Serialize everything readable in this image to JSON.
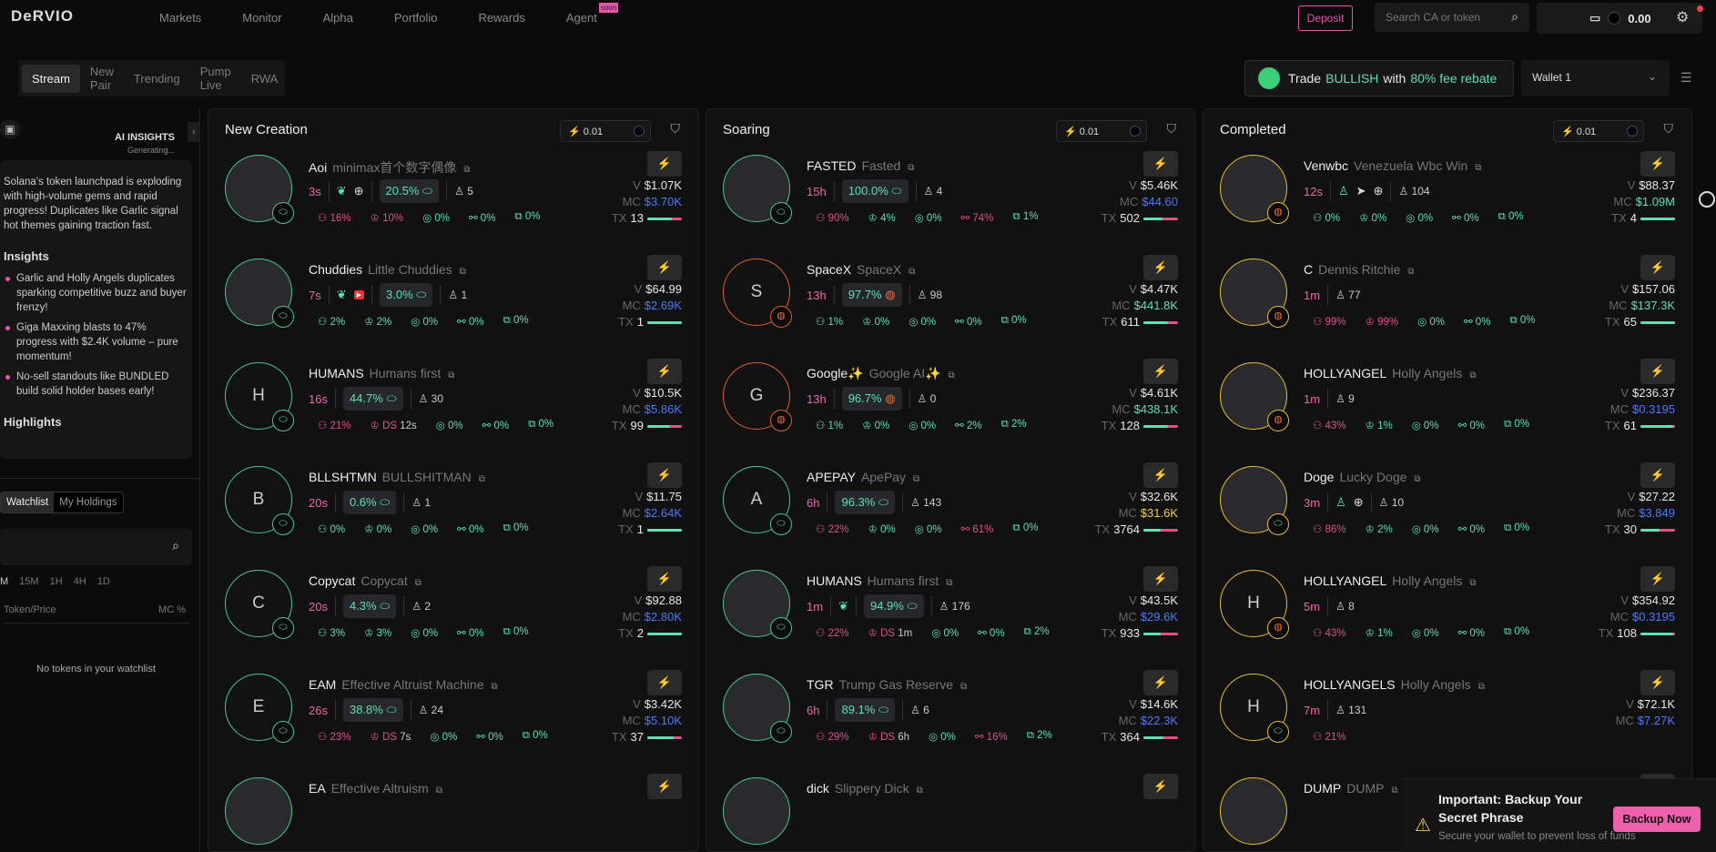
{
  "header": {
    "logo": "DeRVIO",
    "nav": [
      "Markets",
      "Monitor",
      "Alpha",
      "Portfolio",
      "Rewards",
      "Agent"
    ],
    "soon_badge": "soon",
    "deposit": "Deposit",
    "search_placeholder": "Search CA or token",
    "balance": "0.00"
  },
  "tabs": [
    "Stream",
    "New Pair",
    "Trending",
    "Pump Live",
    "RWA"
  ],
  "promo": {
    "t1": "Trade",
    "t2": "BULLISH",
    "t3": "with",
    "t4": "80% fee rebate"
  },
  "wallet_select": "Wallet 1",
  "sidebar": {
    "ai_title": "AI INSIGHTS",
    "ai_status": "Generating...",
    "summary": "Solana's token launchpad is exploding with high-volume gems and rapid progress! Duplicates like Garlic signal hot themes gaining traction fast.",
    "insights_title": "Insights",
    "insights": [
      "Garlic and Holly Angels duplicates sparking competitive buzz and buyer frenzy!",
      "Giga Maxxing blasts to 47% progress with $2.4K volume – pure momentum!",
      "No-sell standouts like BUNDLED build solid holder bases early!"
    ],
    "highlights_title": "Highlights",
    "watch_tabs": [
      "Watchlist",
      "My Holdings"
    ],
    "timeframes": [
      "M",
      "15M",
      "1H",
      "4H",
      "1D"
    ],
    "col_token": "Token/Price",
    "col_mc": "MC %",
    "empty": "No tokens in your watchlist"
  },
  "colors": {
    "green": "#5ee0b0",
    "pink": "#e0508a",
    "blue": "#4b7bf5",
    "yellow": "#f2d230",
    "ring_green": "#49c790",
    "ring_orange": "#e0602a",
    "ring_yellow": "#e6c12c"
  },
  "columns": [
    {
      "title": "New Creation",
      "amount": "0.01",
      "cards": [
        {
          "symbol": "Aoi",
          "name": "minimax首个数字偶像",
          "age": "3s",
          "socials": [
            "leaf",
            "globe"
          ],
          "progress": "20.5%",
          "badge": "pill",
          "holders": "5",
          "stats": [
            {
              "v": "16%",
              "bad": true
            },
            {
              "v": "10%",
              "bad": true
            },
            {
              "v": "0%"
            },
            {
              "v": "0%"
            },
            {
              "v": "0%"
            }
          ],
          "v": "$1.07K",
          "mc": "$3.70K",
          "mc_color": "blue",
          "tx": "13",
          "buy": 0.7,
          "img": true
        },
        {
          "symbol": "Chuddies",
          "name": "Little Chuddies",
          "age": "7s",
          "socials": [
            "leaf",
            "youtube"
          ],
          "progress": "3.0%",
          "badge": "pill",
          "holders": "1",
          "stats": [
            {
              "v": "2%"
            },
            {
              "v": "2%"
            },
            {
              "v": "0%"
            },
            {
              "v": "0%"
            },
            {
              "v": "0%"
            }
          ],
          "v": "$64.99",
          "mc": "$2.69K",
          "mc_color": "blue",
          "tx": "1",
          "buy": 1,
          "img": true
        },
        {
          "symbol": "HUMANS",
          "name": "Humans first",
          "letter": "H",
          "age": "16s",
          "socials": [],
          "progress": "44.7%",
          "badge": "pill",
          "holders": "30",
          "stats": [
            {
              "v": "21%",
              "bad": true
            },
            {
              "v": "12s",
              "ds": true,
              "bad": true
            },
            {
              "v": "0%"
            },
            {
              "v": "0%"
            },
            {
              "v": "0%"
            }
          ],
          "v": "$10.5K",
          "mc": "$5.86K",
          "mc_color": "blue",
          "tx": "99",
          "buy": 0.65
        },
        {
          "symbol": "BLLSHTMN",
          "name": "BULLSHITMAN",
          "letter": "B",
          "age": "20s",
          "socials": [],
          "progress": "0.6%",
          "badge": "pill",
          "holders": "1",
          "stats": [
            {
              "v": "0%"
            },
            {
              "v": "0%"
            },
            {
              "v": "0%"
            },
            {
              "v": "0%"
            },
            {
              "v": "0%"
            }
          ],
          "v": "$11.75",
          "mc": "$2.64K",
          "mc_color": "blue",
          "tx": "1",
          "buy": 1
        },
        {
          "symbol": "Copycat",
          "name": "Copycat",
          "letter": "C",
          "age": "20s",
          "socials": [],
          "progress": "4.3%",
          "badge": "pill",
          "holders": "2",
          "stats": [
            {
              "v": "3%"
            },
            {
              "v": "3%"
            },
            {
              "v": "0%"
            },
            {
              "v": "0%"
            },
            {
              "v": "0%"
            }
          ],
          "v": "$92.88",
          "mc": "$2.80K",
          "mc_color": "blue",
          "tx": "2",
          "buy": 1
        },
        {
          "symbol": "EAM",
          "name": "Effective Altruist Machine",
          "letter": "E",
          "age": "26s",
          "socials": [],
          "progress": "38.8%",
          "badge": "pill",
          "holders": "24",
          "stats": [
            {
              "v": "23%",
              "bad": true
            },
            {
              "v": "7s",
              "ds": true,
              "bad": true
            },
            {
              "v": "0%"
            },
            {
              "v": "0%"
            },
            {
              "v": "0%"
            }
          ],
          "v": "$3.42K",
          "mc": "$5.10K",
          "mc_color": "blue",
          "tx": "37",
          "buy": 0.75
        },
        {
          "symbol": "EA",
          "name": "Effective Altruism",
          "img": true
        }
      ]
    },
    {
      "title": "Soaring",
      "amount": "0.01",
      "cards": [
        {
          "symbol": "FASTED",
          "name": "Fasted",
          "age": "15h",
          "socials": [],
          "progress": "100.0%",
          "badge": "pill",
          "holders": "4",
          "stats": [
            {
              "v": "90%",
              "bad": true
            },
            {
              "v": "4%"
            },
            {
              "v": "0%"
            },
            {
              "v": "74%",
              "bad": true
            },
            {
              "v": "1%"
            }
          ],
          "v": "$5.46K",
          "mc": "$44.60",
          "mc_color": "blue",
          "tx": "502",
          "buy": 0.55,
          "img": true
        },
        {
          "symbol": "SpaceX",
          "name": "SpaceX",
          "letter": "S",
          "ring": "orange",
          "age": "13h",
          "socials": [],
          "progress": "97.7%",
          "badge": "pump",
          "holders": "98",
          "stats": [
            {
              "v": "1%"
            },
            {
              "v": "0%"
            },
            {
              "v": "0%"
            },
            {
              "v": "0%"
            },
            {
              "v": "0%"
            }
          ],
          "v": "$4.47K",
          "mc": "$441.8K",
          "mc_color": "green",
          "tx": "611",
          "buy": 0.72
        },
        {
          "symbol": "Google✨",
          "name": "Google AI✨",
          "letter": "G",
          "ring": "orange",
          "age": "13h",
          "socials": [],
          "progress": "96.7%",
          "badge": "pump",
          "holders": "0",
          "stats": [
            {
              "v": "1%"
            },
            {
              "v": "0%"
            },
            {
              "v": "0%"
            },
            {
              "v": "2%"
            },
            {
              "v": "2%"
            }
          ],
          "v": "$4.61K",
          "mc": "$438.1K",
          "mc_color": "green",
          "tx": "128",
          "buy": 0.72
        },
        {
          "symbol": "APEPAY",
          "name": "ApePay",
          "letter": "A",
          "age": "6h",
          "socials": [],
          "progress": "96.3%",
          "badge": "pill",
          "holders": "143",
          "stats": [
            {
              "v": "22%",
              "bad": true
            },
            {
              "v": "0%"
            },
            {
              "v": "0%"
            },
            {
              "v": "61%",
              "bad": true
            },
            {
              "v": "0%"
            }
          ],
          "v": "$32.6K",
          "mc": "$31.6K",
          "mc_color": "yellow",
          "tx": "3764",
          "buy": 0.5
        },
        {
          "symbol": "HUMANS",
          "name": "Humans first",
          "age": "1m",
          "socials": [
            "leaf"
          ],
          "progress": "94.9%",
          "badge": "pill",
          "holders": "176",
          "stats": [
            {
              "v": "22%",
              "bad": true
            },
            {
              "v": "1m",
              "ds": true,
              "bad": true
            },
            {
              "v": "0%"
            },
            {
              "v": "0%"
            },
            {
              "v": "2%"
            }
          ],
          "v": "$43.5K",
          "mc": "$29.6K",
          "mc_color": "blue",
          "tx": "933",
          "buy": 0.5,
          "img": true
        },
        {
          "symbol": "TGR",
          "name": "Trump Gas Reserve",
          "age": "6h",
          "socials": [],
          "progress": "89.1%",
          "badge": "pill",
          "holders": "6",
          "stats": [
            {
              "v": "29%",
              "bad": true
            },
            {
              "v": "6h",
              "ds": true,
              "bad": true
            },
            {
              "v": "0%"
            },
            {
              "v": "16%",
              "bad": true
            },
            {
              "v": "2%"
            }
          ],
          "v": "$14.6K",
          "mc": "$22.3K",
          "mc_color": "blue",
          "tx": "364",
          "buy": 0.58,
          "img": true
        },
        {
          "symbol": "dick",
          "name": "Slippery Dick",
          "img": true
        }
      ]
    },
    {
      "title": "Completed",
      "amount": "0.01",
      "cards": [
        {
          "symbol": "Venwbc",
          "name": "Venezuela Wbc Win",
          "ring": "yellow",
          "age": "12s",
          "socials": [
            "user",
            "telegram",
            "globe"
          ],
          "badge": "pump",
          "holders": "104",
          "stats": [
            {
              "v": "0%"
            },
            {
              "v": "0%"
            },
            {
              "v": "0%"
            },
            {
              "v": "0%"
            },
            {
              "v": "0%"
            }
          ],
          "v": "$88.37",
          "mc": "$1.09M",
          "mc_color": "green",
          "tx": "4",
          "buy": 1,
          "img": true
        },
        {
          "symbol": "C",
          "name": "Dennis Ritchie",
          "ring": "yellow",
          "age": "1m",
          "socials": [],
          "badge": "pump",
          "holders": "77",
          "stats": [
            {
              "v": "99%",
              "bad": true
            },
            {
              "v": "99%",
              "bad": true
            },
            {
              "v": "0%"
            },
            {
              "v": "0%"
            },
            {
              "v": "0%"
            }
          ],
          "v": "$157.06",
          "mc": "$137.3K",
          "mc_color": "green",
          "tx": "65",
          "buy": 1,
          "img": true
        },
        {
          "symbol": "HOLLYANGEL",
          "name": "Holly Angels",
          "ring": "yellow",
          "age": "1m",
          "socials": [],
          "badge": "pump",
          "holders": "9",
          "stats": [
            {
              "v": "43%",
              "bad": true
            },
            {
              "v": "1%"
            },
            {
              "v": "0%"
            },
            {
              "v": "0%"
            },
            {
              "v": "0%"
            }
          ],
          "v": "$236.37",
          "mc": "$0.3195",
          "mc_color": "blue",
          "tx": "61",
          "buy": 0.96,
          "img": true
        },
        {
          "symbol": "Doge",
          "name": "Lucky Doge",
          "ring": "yellow",
          "age": "3m",
          "socials": [
            "user",
            "globe"
          ],
          "badge": "pill",
          "holders": "10",
          "stats": [
            {
              "v": "86%",
              "bad": true
            },
            {
              "v": "2%"
            },
            {
              "v": "0%"
            },
            {
              "v": "0%"
            },
            {
              "v": "0%"
            }
          ],
          "v": "$27.22",
          "mc": "$3.849",
          "mc_color": "blue",
          "tx": "30",
          "buy": 0.55,
          "img": true
        },
        {
          "symbol": "HOLLYANGEL",
          "name": "Holly Angels",
          "letter": "H",
          "ring": "yellow",
          "age": "5m",
          "socials": [],
          "badge": "pump",
          "holders": "8",
          "stats": [
            {
              "v": "43%",
              "bad": true
            },
            {
              "v": "1%"
            },
            {
              "v": "0%"
            },
            {
              "v": "0%"
            },
            {
              "v": "0%"
            }
          ],
          "v": "$354.92",
          "mc": "$0.3195",
          "mc_color": "blue",
          "tx": "108",
          "buy": 0.96
        },
        {
          "symbol": "HOLLYANGELS",
          "name": "Holly Angels",
          "letter": "H",
          "ring": "yellow",
          "age": "7m",
          "socials": [],
          "badge": "pill",
          "holders": "131",
          "stats": [
            {
              "v": "21%",
              "bad": true
            }
          ],
          "v": "$72.1K",
          "mc": "$7.27K",
          "mc_color": "blue"
        },
        {
          "symbol": "DUMP",
          "name": "DUMP",
          "ring": "yellow",
          "img": true
        }
      ]
    }
  ],
  "toast": {
    "title": "Important: Backup Your Secret Phrase",
    "body": "Secure your wallet to prevent loss of funds",
    "button": "Backup Now"
  }
}
